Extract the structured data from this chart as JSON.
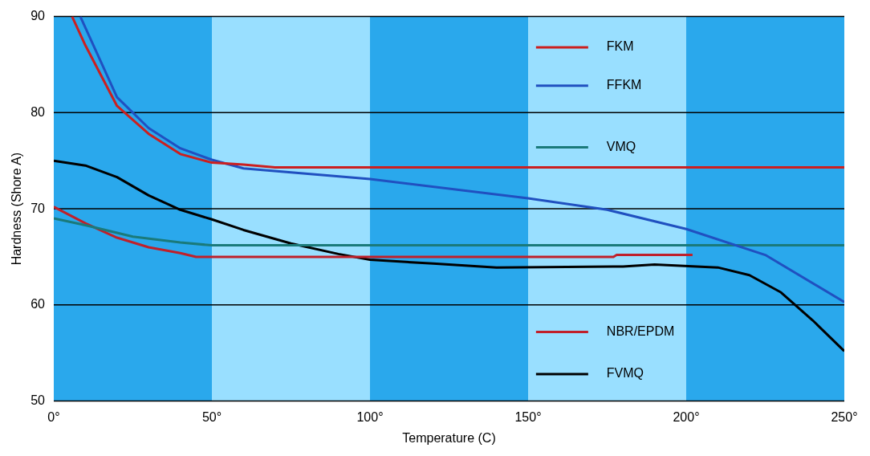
{
  "chart_data": {
    "type": "line",
    "xlabel": "Temperature (C)",
    "ylabel": "Hardness (Shore A)",
    "xlim": [
      0,
      250
    ],
    "xticks": [
      {
        "value": 0,
        "label": "0°"
      },
      {
        "value": 50,
        "label": "50°"
      },
      {
        "value": 100,
        "label": "100°"
      },
      {
        "value": 150,
        "label": "150°"
      },
      {
        "value": 200,
        "label": "200°"
      },
      {
        "value": 250,
        "label": "250°"
      }
    ],
    "ylim": [
      50,
      90
    ],
    "yticks": [
      50,
      60,
      70,
      80,
      90
    ],
    "grid": "y",
    "legend": "right",
    "marker": "none",
    "line_style": "solid",
    "bands": [
      {
        "axis": "x",
        "from": 0,
        "to": 50,
        "color": "#2aa8ec"
      },
      {
        "axis": "x",
        "from": 50,
        "to": 100,
        "color": "#99dfff"
      },
      {
        "axis": "x",
        "from": 100,
        "to": 150,
        "color": "#2aa8ec"
      },
      {
        "axis": "x",
        "from": 150,
        "to": 200,
        "color": "#99dfff"
      },
      {
        "axis": "x",
        "from": 200,
        "to": 250,
        "color": "#2aa8ec"
      }
    ],
    "series": [
      {
        "name": "FKM",
        "color": "#cc1f1f",
        "x": [
          5.8,
          10,
          20,
          30,
          40,
          50,
          60,
          70,
          100,
          150,
          200,
          250
        ],
        "values": [
          90,
          87,
          80.7,
          77.8,
          75.7,
          74.8,
          74.6,
          74.3,
          74.3,
          74.3,
          74.3,
          74.3
        ]
      },
      {
        "name": "FFKM",
        "color": "#2050c0",
        "x": [
          8.4,
          20,
          30,
          40,
          50,
          60,
          100,
          150,
          175,
          200,
          225,
          250
        ],
        "values": [
          90,
          81.6,
          78.4,
          76.3,
          75.1,
          74.2,
          73.1,
          71.1,
          69.9,
          67.9,
          65.2,
          60.3
        ]
      },
      {
        "name": "VMQ",
        "color": "#1a7a7a",
        "x": [
          0,
          10,
          25,
          40,
          50,
          100,
          150,
          200,
          250
        ],
        "values": [
          69,
          68.3,
          67.1,
          66.5,
          66.2,
          66.2,
          66.2,
          66.2,
          66.2
        ]
      },
      {
        "name": "NBR/EPDM",
        "color": "#c0202a",
        "x": [
          0,
          10,
          20,
          30,
          40,
          45,
          100,
          177,
          178,
          202
        ],
        "values": [
          70.2,
          68.5,
          67,
          66,
          65.4,
          65,
          65,
          65,
          65.2,
          65.2
        ]
      },
      {
        "name": "FVMQ",
        "color": "#000000",
        "x": [
          0,
          10,
          20,
          30,
          40,
          50,
          60,
          75,
          90,
          100,
          120,
          140,
          180,
          190,
          210,
          220,
          230,
          240,
          250
        ],
        "values": [
          75,
          74.5,
          73.3,
          71.4,
          69.9,
          68.9,
          67.8,
          66.4,
          65.3,
          64.7,
          64.3,
          63.9,
          64,
          64.2,
          63.9,
          63.1,
          61.3,
          58.4,
          55.2
        ]
      }
    ]
  }
}
